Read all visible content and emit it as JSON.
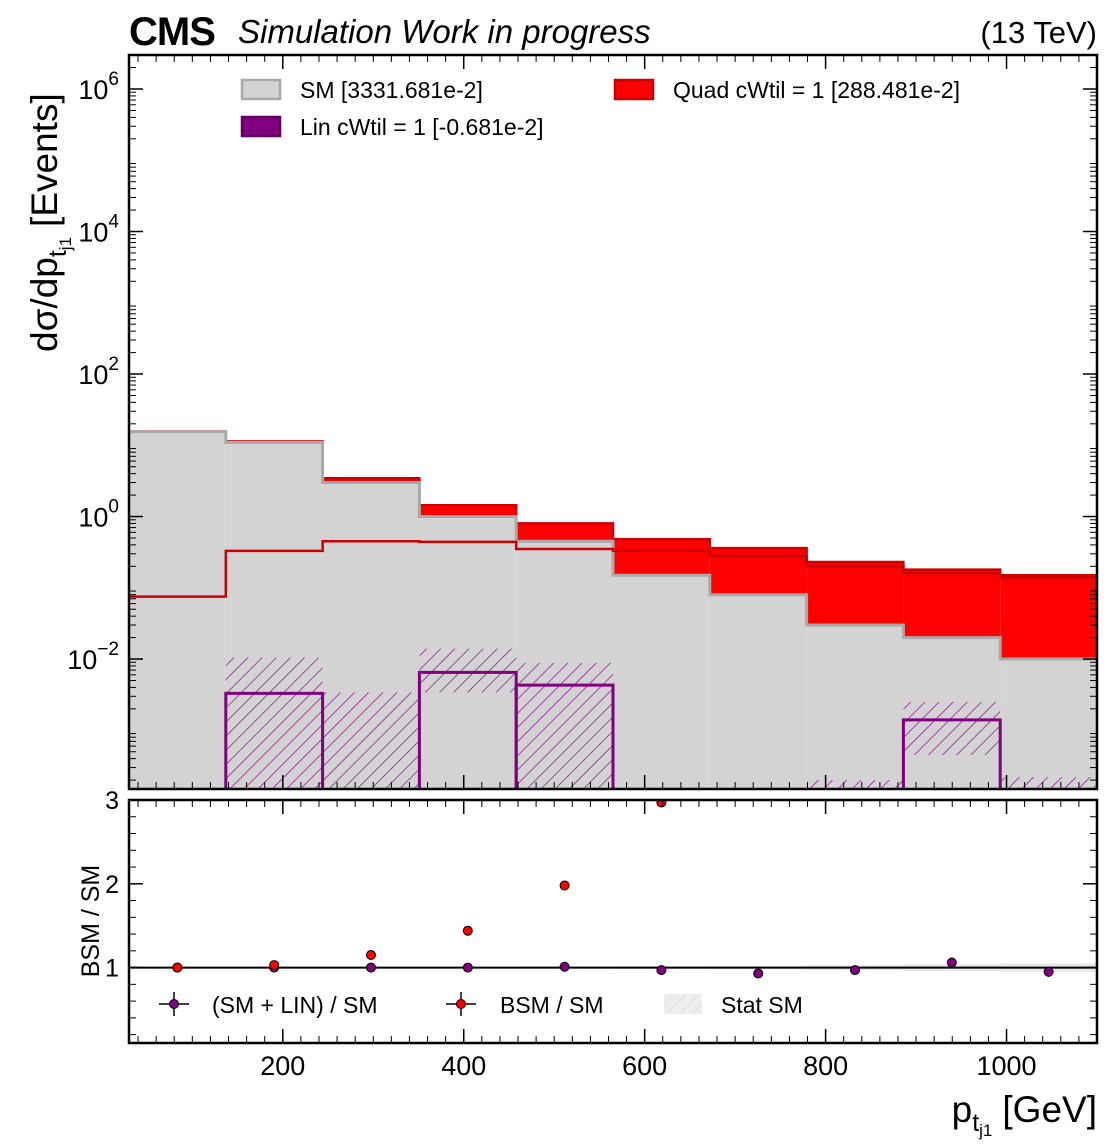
{
  "header": {
    "experiment": "CMS",
    "status": "Simulation Work in progress",
    "energy": "(13 TeV)"
  },
  "colors": {
    "sm_fill": "#d3d3d3",
    "sm_edge": "#a9a9a9",
    "quad": "#ff0000",
    "quad_line": "#cc0000",
    "lin": "#800080",
    "band": "#e8e8e8"
  },
  "chart_data": [
    {
      "type": "area",
      "title": "",
      "ylabel_main": "dσ/dp",
      "ylabel_sub": "t",
      "ylabel_subsub": "j1",
      "ylabel_unit": "[Events]",
      "yscale": "log",
      "ylim": [
        0.00015,
        3000000
      ],
      "xlim": [
        30,
        1100
      ],
      "yticks": [
        {
          "base": "10",
          "exp": "6",
          "value": 1000000
        },
        {
          "base": "10",
          "exp": "4",
          "value": 10000
        },
        {
          "base": "10",
          "exp": "2",
          "value": 100
        },
        {
          "base": "10",
          "exp": "0",
          "value": 1
        },
        {
          "base": "10",
          "exp": "−2",
          "value": 0.01
        }
      ],
      "bin_edges": [
        30,
        137,
        244,
        351,
        458,
        565,
        672,
        779,
        886,
        993,
        1100
      ],
      "legend_placement": "top",
      "legend": [
        {
          "label": "SM [3331.681e-2]",
          "kind": "sm"
        },
        {
          "label": "Quad cWtil = 1 [288.481e-2]",
          "kind": "quad"
        },
        {
          "label": "Lin cWtil = 1 [-0.681e-2]",
          "kind": "lin"
        }
      ],
      "series": [
        {
          "name": "SM [3331.681e-2]",
          "values": [
            15.5,
            11.0,
            3.0,
            1.0,
            0.45,
            0.15,
            0.08,
            0.03,
            0.02,
            0.01
          ]
        },
        {
          "name": "Quad cWtil = 1 [288.481e-2]",
          "values": [
            0.075,
            0.33,
            0.45,
            0.44,
            0.35,
            0.33,
            0.28,
            0.2,
            0.16,
            0.14
          ]
        },
        {
          "name": "Lin cWtil = 1 [-0.681e-2]",
          "values": [
            0,
            0.0033,
            0,
            0.0065,
            0.0043,
            0,
            0,
            0,
            0.0014,
            0
          ]
        },
        {
          "name": "Lin stat band",
          "lo": [
            0,
            0.0001,
            0.0001,
            0.0034,
            0.0001,
            0,
            0,
            0.0001,
            0.00045,
            0.0001
          ],
          "hi": [
            0,
            0.0105,
            0.0034,
            0.014,
            0.0088,
            0,
            0,
            0.0002,
            0.0025,
            0.00022
          ]
        }
      ]
    },
    {
      "type": "scatter",
      "ylabel": "BSM / SM",
      "xlabel_main": "p",
      "xlabel_sub": "t",
      "xlabel_subsub": "j1",
      "xlabel_unit": "[GeV]",
      "ylim": [
        0.1,
        3.0
      ],
      "xlim": [
        30,
        1100
      ],
      "xticks": [
        200,
        400,
        600,
        800,
        1000
      ],
      "xtick_labels": [
        "200",
        "400",
        "600",
        "800",
        "1000"
      ],
      "yticks": [
        1,
        2,
        3
      ],
      "ytick_labels": [
        "1",
        "2",
        "3"
      ],
      "x": [
        83.5,
        190.5,
        297.5,
        404.5,
        511.5,
        618.5,
        725.5,
        832.5,
        939.5,
        1046.5
      ],
      "legend_placement": "bottom",
      "legend": [
        "(SM + LIN) / SM",
        "BSM / SM",
        "Stat SM"
      ],
      "series": [
        {
          "name": "(SM + LIN) / SM",
          "values": [
            1.0,
            1.0,
            1.0,
            1.0,
            1.01,
            0.97,
            0.93,
            0.97,
            1.06,
            0.95
          ],
          "err": [
            0.01,
            0.01,
            0.01,
            0.01,
            0.01,
            0.01,
            0.01,
            0.01,
            0.04,
            0.06
          ]
        },
        {
          "name": "BSM / SM",
          "values": [
            1.0,
            1.03,
            1.15,
            1.44,
            1.98,
            2.97,
            0,
            0,
            0,
            0
          ]
        },
        {
          "name": "Stat SM",
          "lo": [
            0.995,
            0.995,
            0.995,
            0.995,
            0.99,
            0.985,
            0.98,
            0.97,
            0.96,
            0.95
          ],
          "hi": [
            1.005,
            1.005,
            1.005,
            1.005,
            1.01,
            1.015,
            1.02,
            1.03,
            1.04,
            1.05
          ]
        }
      ]
    }
  ]
}
